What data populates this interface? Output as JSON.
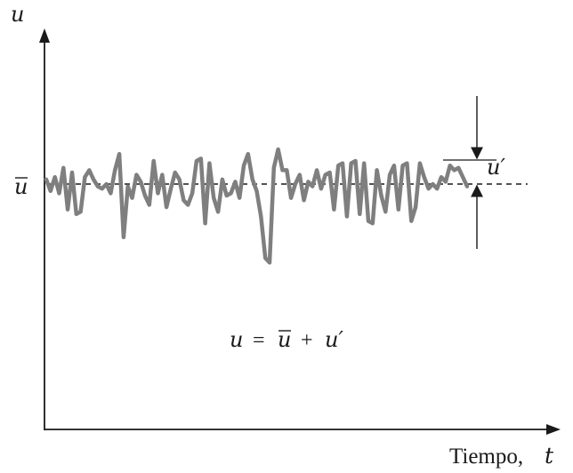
{
  "figure": {
    "y_axis_label": "u",
    "x_axis_label_word": "Tiempo,",
    "x_axis_label_var": "t",
    "mean_label": "u",
    "fluctuation_label": "u′",
    "equation": {
      "lhs": "u",
      "equals": "=",
      "mean": "u",
      "plus": "+",
      "fluct": "u′"
    }
  },
  "chart_data": {
    "type": "line",
    "description_units": "u in arbitrary units, mean normalized to 0",
    "mean_value": 0,
    "series": [
      {
        "values": [
          0.2,
          -0.3,
          0.3,
          -0.4,
          0.7,
          -1.1,
          0.5,
          -1.3,
          -1.2,
          0.3,
          0.6,
          0.2,
          -0.1,
          -0.2,
          0.0,
          -0.4,
          0.6,
          1.3,
          -2.3,
          -0.1,
          -0.6,
          0.4,
          0.1,
          -0.5,
          -0.9,
          1.0,
          -0.4,
          0.4,
          -1.0,
          -0.2,
          0.5,
          0.2,
          -0.7,
          -0.9,
          -0.4,
          1.0,
          1.1,
          -1.7,
          0.9,
          -0.6,
          -1.2,
          0.2,
          -0.5,
          -0.4,
          0.1,
          -0.6,
          0.8,
          1.3,
          0.2,
          -0.3,
          -1.4,
          -3.2,
          -3.4,
          0.7,
          1.5,
          0.6,
          0.6,
          -0.6,
          0.0,
          0.4,
          -0.7,
          0.1,
          -0.1,
          0.6,
          -0.2,
          0.4,
          0.5,
          -1.1,
          0.8,
          0.9,
          -1.4,
          0.9,
          1.0,
          -1.3,
          0.9,
          -1.6,
          -1.7,
          0.6,
          -0.5,
          -1.2,
          0.4,
          0.8,
          -1.1,
          0.8,
          0.9,
          -1.6,
          -1.0,
          0.9,
          0.3,
          -0.2,
          0.0,
          -0.2,
          0.3,
          0.1,
          0.8,
          0.6,
          0.7,
          0.3,
          -0.1
        ]
      }
    ]
  }
}
